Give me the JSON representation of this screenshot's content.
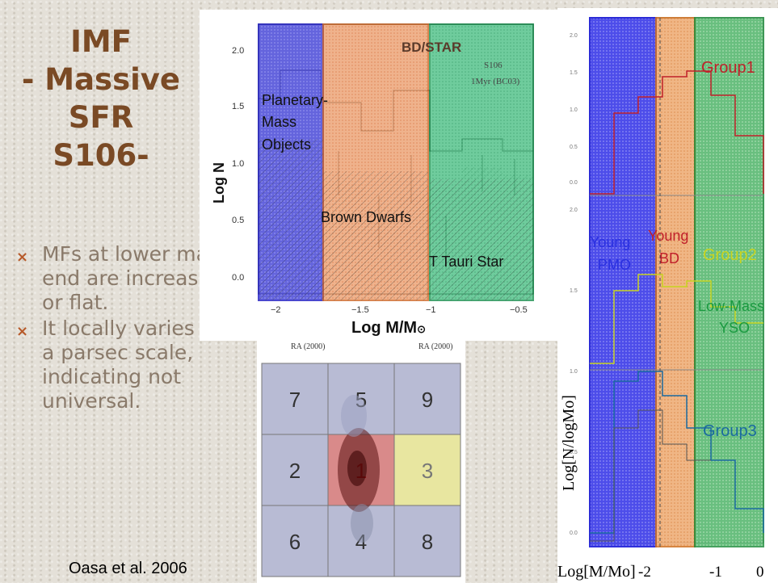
{
  "slide": {
    "title_lines": [
      "IMF",
      "- Massive",
      "SFR",
      "S106-"
    ],
    "bullets": [
      "MFs at lower mass end are increasing or flat.",
      "It locally varies on a parsec scale, indicating not universal."
    ],
    "bullet_marker": "×",
    "citation": "Oasa et al. 2006"
  },
  "left_chart": {
    "header": "BD/STAR",
    "subheader": [
      "S106",
      "1Myr (BC03)"
    ],
    "ylabel": "Log N",
    "xlabel": "Log M/M",
    "xlabel_symbol": "⊙",
    "yticks": [
      "2.0",
      "1.5",
      "1.0",
      "0.5",
      "0.0"
    ],
    "xticks": [
      "−2",
      "−1.5",
      "−1",
      "−0.5"
    ],
    "regions": [
      {
        "label_lines": [
          "Planetary-",
          "Mass",
          "Objects"
        ],
        "color": "#3a35d0"
      },
      {
        "label_lines": [
          "Brown Dwarfs"
        ],
        "color": "#e8804a"
      },
      {
        "label_lines": [
          "T Tauri Star"
        ],
        "color": "#2db070"
      }
    ]
  },
  "field_map": {
    "axis_labels": [
      "RA (2000)",
      "RA (2000)"
    ],
    "cells": [
      {
        "label": "7",
        "fill": "#b8bbd4",
        "text": "#333"
      },
      {
        "label": "5",
        "fill": "#b8bbd4",
        "text": "#333"
      },
      {
        "label": "9",
        "fill": "#b8bbd4",
        "text": "#333"
      },
      {
        "label": "2",
        "fill": "#b8bbd4",
        "text": "#333"
      },
      {
        "label": "1",
        "fill": "#d98a8a",
        "text": "#c01010"
      },
      {
        "label": "3",
        "fill": "#e8e6a0",
        "text": "#777"
      },
      {
        "label": "6",
        "fill": "#b8bbd4",
        "text": "#333"
      },
      {
        "label": "4",
        "fill": "#b8bbd4",
        "text": "#333"
      },
      {
        "label": "8",
        "fill": "#b8bbd4",
        "text": "#333"
      }
    ]
  },
  "right_chart": {
    "ylabel": "Log[N/logMo]",
    "xlabel": "Log[M/Mo]",
    "xticks": [
      "-2",
      "-1",
      "0"
    ],
    "yticks_top": [
      "2.0",
      "1.5",
      "1.0",
      "0.5",
      "0.0"
    ],
    "yticks_bottom": [
      "2.0",
      "1.5",
      "1.0",
      "0.5",
      "0.0"
    ],
    "groups": [
      {
        "label": "Group1",
        "color": "#c0202a"
      },
      {
        "label": "Group2",
        "color": "#c8d420"
      },
      {
        "label": "Group3",
        "color": "#1a6aa0"
      }
    ],
    "regions": [
      {
        "label_lines": [
          "Young",
          "PMO"
        ],
        "color": "#2a30e0"
      },
      {
        "label_lines": [
          "Young",
          "BD"
        ],
        "color": "#e07a20"
      },
      {
        "label_lines": [
          "Low-Mass",
          "YSO"
        ],
        "color": "#1a9a40"
      }
    ]
  }
}
